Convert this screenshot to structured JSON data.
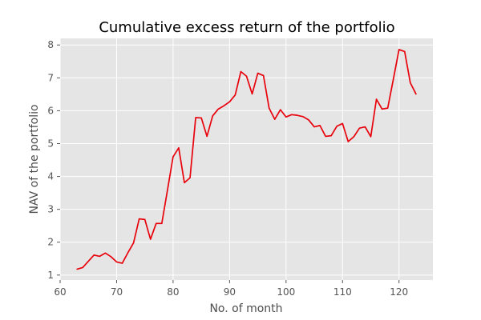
{
  "chart_data": {
    "type": "line",
    "title": "Cumulative excess return of the portfolio",
    "xlabel": "No. of month",
    "ylabel": "NAV of the portfolio",
    "xlim": [
      60,
      126
    ],
    "ylim": [
      0.85,
      8.2
    ],
    "xticks": [
      60,
      70,
      80,
      90,
      100,
      110,
      120
    ],
    "yticks": [
      1,
      2,
      3,
      4,
      5,
      6,
      7,
      8
    ],
    "grid": true,
    "style": "ggplot",
    "colors": {
      "background": "#e5e5e5",
      "grid": "#ffffff",
      "line": "#e8000b"
    },
    "series": [
      {
        "x": [
          63,
          64,
          65,
          66,
          67,
          68,
          69,
          70,
          71,
          72,
          73,
          74,
          75,
          76,
          77,
          78,
          79,
          80,
          81,
          82,
          83,
          84,
          85,
          86,
          87,
          88,
          89,
          90,
          91,
          92,
          93,
          94,
          95,
          96,
          97,
          98,
          99,
          100,
          101,
          102,
          103,
          104,
          105,
          106,
          107,
          108,
          109,
          110,
          111,
          112,
          113,
          114,
          115,
          116,
          117,
          118,
          119,
          120,
          121,
          122,
          123
        ],
        "values": [
          1.18,
          1.23,
          1.42,
          1.61,
          1.57,
          1.67,
          1.56,
          1.4,
          1.36,
          1.68,
          1.98,
          2.71,
          2.69,
          2.09,
          2.57,
          2.57,
          3.58,
          4.6,
          4.87,
          3.81,
          3.96,
          5.79,
          5.78,
          5.22,
          5.84,
          6.05,
          6.15,
          6.27,
          6.48,
          7.19,
          7.05,
          6.51,
          7.14,
          7.07,
          6.08,
          5.74,
          6.03,
          5.81,
          5.88,
          5.86,
          5.82,
          5.72,
          5.51,
          5.55,
          5.22,
          5.24,
          5.53,
          5.61,
          5.06,
          5.21,
          5.47,
          5.51,
          5.21,
          6.35,
          6.05,
          6.08,
          6.96,
          7.86,
          7.8,
          6.85,
          6.51
        ]
      }
    ]
  }
}
